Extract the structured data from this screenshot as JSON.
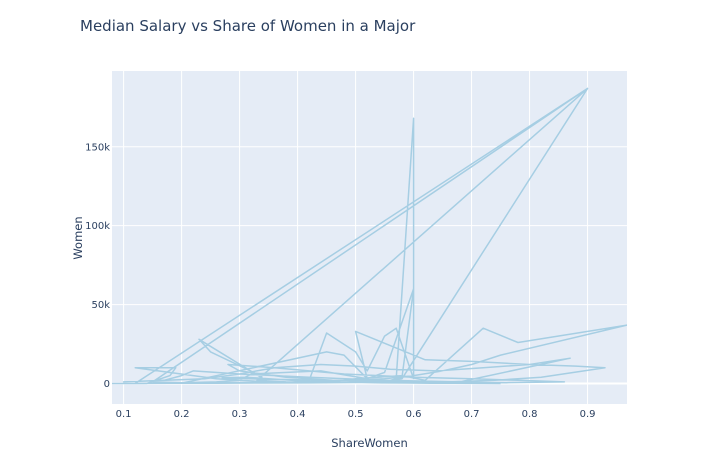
{
  "chart_data": {
    "type": "line",
    "title": "Median Salary vs Share of Women in a Major",
    "xlabel": "ShareWomen",
    "ylabel": "Women",
    "xlim": [
      0.08,
      0.968
    ],
    "ylim": [
      -13000,
      198000
    ],
    "xticks": [
      0.1,
      0.2,
      0.3,
      0.4,
      0.5,
      0.6,
      0.7,
      0.8,
      0.9
    ],
    "xtick_labels": [
      "0.1",
      "0.2",
      "0.3",
      "0.4",
      "0.5",
      "0.6",
      "0.7",
      "0.8",
      "0.9"
    ],
    "yticks": [
      0,
      50000,
      100000,
      150000
    ],
    "ytick_labels": [
      "0",
      "50k",
      "100k",
      "150k"
    ],
    "grid": true,
    "line_color": "#a6cee3",
    "background_color": "#e5ecf6",
    "series": [
      {
        "x": [
          0.08,
          0.12,
          0.14,
          0.18,
          0.19,
          0.12,
          0.22,
          0.26,
          0.3,
          0.35,
          0.23,
          0.25,
          0.33,
          0.4,
          0.42,
          0.45,
          0.5,
          0.52,
          0.55,
          0.57,
          0.6,
          0.6,
          0.57,
          0.56,
          0.58,
          0.6,
          0.55,
          0.52,
          0.44,
          0.32,
          0.3,
          0.26,
          0.2,
          0.15,
          0.9,
          0.33,
          0.38,
          0.45,
          0.5,
          0.58,
          0.62,
          0.72,
          0.78,
          0.968,
          0.75,
          0.7,
          0.65,
          0.6,
          0.55,
          0.5,
          0.45,
          0.4,
          0.35,
          0.3,
          0.25,
          0.2,
          0.45,
          0.48,
          0.52,
          0.5,
          0.62,
          0.7,
          0.8,
          0.87,
          0.68,
          0.55,
          0.42,
          0.3,
          0.22,
          0.2,
          0.17,
          0.1,
          0.24,
          0.3,
          0.36,
          0.44,
          0.5,
          0.56,
          0.64,
          0.72,
          0.8,
          0.88,
          0.93,
          0.82,
          0.74,
          0.66,
          0.58,
          0.5,
          0.42,
          0.34,
          0.26,
          0.18,
          0.12,
          0.9,
          0.58,
          0.54,
          0.46,
          0.38,
          0.3,
          0.28,
          0.36,
          0.48,
          0.6,
          0.7,
          0.78,
          0.86,
          0.76,
          0.7,
          0.62,
          0.54,
          0.46,
          0.4,
          0.34,
          0.29,
          0.27,
          0.31,
          0.35,
          0.39,
          0.43,
          0.47,
          0.51,
          0.55,
          0.59,
          0.63,
          0.67,
          0.71,
          0.75
        ],
        "y": [
          0,
          0,
          0,
          5000,
          10000,
          10000,
          5000,
          3000,
          2000,
          1000,
          28000,
          20000,
          6000,
          4000,
          2000,
          32000,
          20000,
          8000,
          30000,
          35000,
          3000,
          168000,
          3000,
          2000,
          4000,
          60000,
          7000,
          3000,
          8000,
          6000,
          2000,
          1000,
          500,
          1000,
          187000,
          2000,
          1000,
          500,
          3000,
          5000,
          2000,
          35000,
          26000,
          37000,
          18000,
          12000,
          8000,
          5000,
          3000,
          2000,
          1500,
          1000,
          800,
          600,
          400,
          200,
          20000,
          18000,
          3000,
          33000,
          15000,
          14000,
          12000,
          16000,
          1000,
          2000,
          4000,
          6000,
          8000,
          5000,
          2000,
          1000,
          3000,
          6000,
          10000,
          12000,
          11000,
          9000,
          8000,
          10000,
          12000,
          11000,
          10000,
          4000,
          2000,
          1000,
          800,
          600,
          400,
          300,
          200,
          100,
          50,
          187000,
          3000,
          1000,
          2000,
          4000,
          8000,
          12000,
          10000,
          6000,
          4000,
          3000,
          2000,
          1000,
          500,
          800,
          1200,
          1600,
          2000,
          2400,
          2800,
          3200,
          3600,
          4000,
          3000,
          2000,
          1000,
          800,
          600,
          400,
          300,
          200,
          100,
          50,
          20
        ]
      }
    ]
  }
}
